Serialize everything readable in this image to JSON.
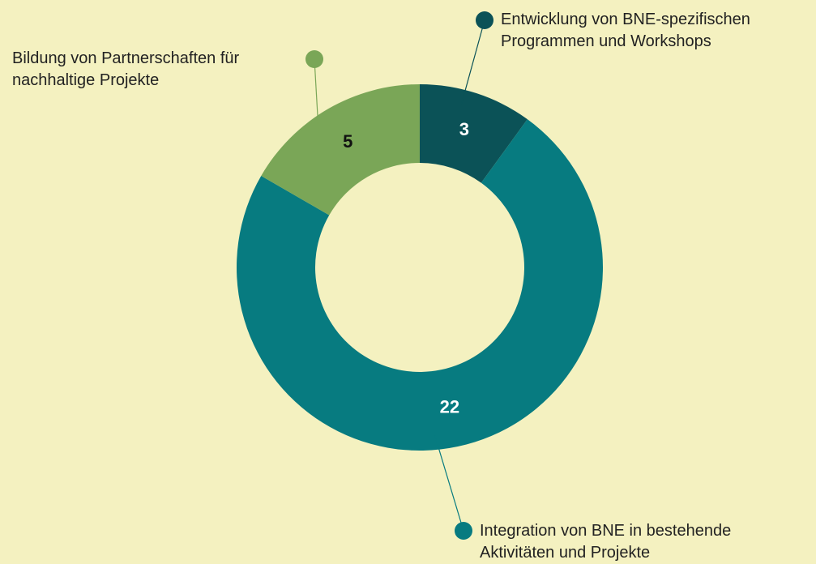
{
  "chart_data": {
    "type": "donut",
    "categories": [
      "Entwicklung von BNE-spezifischen Programmen und Workshops",
      "Integration von BNE in bestehende Aktivitäten und Projekte",
      "Bildung von Partnerschaften für nachhaltige Projekte"
    ],
    "values": [
      3,
      22,
      5
    ],
    "colors": [
      "#0b5257",
      "#077b80",
      "#7aa657"
    ],
    "label_colors": [
      "#ffffff",
      "#ffffff",
      "#111111"
    ]
  }
}
